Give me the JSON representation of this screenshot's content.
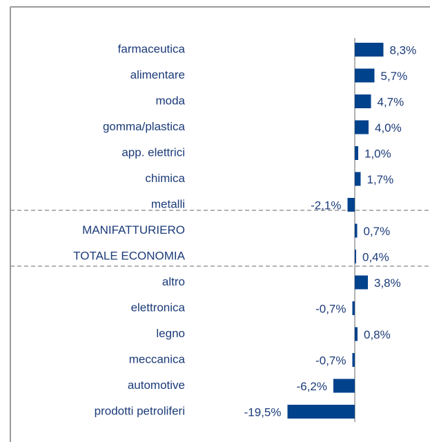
{
  "chart_data": {
    "type": "hbar",
    "categories": [
      "farmaceutica",
      "alimentare",
      "moda",
      "gomma/plastica",
      "app. elettrici",
      "chimica",
      "metalli",
      "MANIFATTURIERO",
      "TOTALE ECONOMIA",
      "altro",
      "elettronica",
      "legno",
      "meccanica",
      "automotive",
      "prodotti petroliferi"
    ],
    "values": [
      8.3,
      5.7,
      4.7,
      4.0,
      1.0,
      1.7,
      -2.1,
      0.7,
      0.4,
      3.8,
      -0.7,
      0.8,
      -0.7,
      -6.2,
      -19.5
    ],
    "value_labels": [
      "8,3%",
      "5,7%",
      "4,7%",
      "4,0%",
      "1,0%",
      "1,7%",
      "-2,1%",
      "0,7%",
      "0,4%",
      "3,8%",
      "-0,7%",
      "0,8%",
      "-0,7%",
      "-6,2%",
      "-19,5%"
    ],
    "color": "#00428c",
    "xlim": [
      -20,
      10
    ]
  }
}
